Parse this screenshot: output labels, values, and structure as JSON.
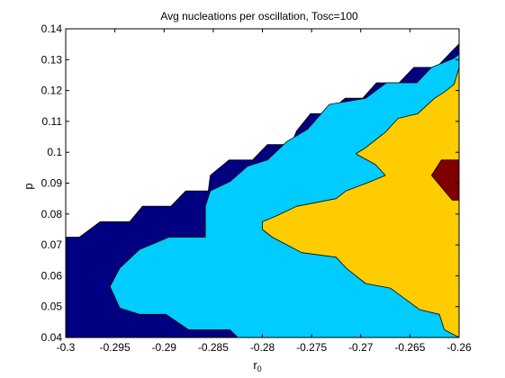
{
  "chart_data": {
    "type": "contourf",
    "title": "Avg nucleations per oscillation, Tosc=100",
    "xlabel": "r",
    "xlabel_subscript": "0",
    "ylabel": "p",
    "xlim": [
      -0.3,
      -0.26
    ],
    "ylim": [
      0.04,
      0.14
    ],
    "xticks": [
      -0.3,
      -0.295,
      -0.29,
      -0.285,
      -0.28,
      -0.275,
      -0.27,
      -0.265,
      -0.26
    ],
    "xtick_labels": [
      "-0.3",
      "-0.295",
      "-0.29",
      "-0.285",
      "-0.28",
      "-0.275",
      "-0.27",
      "-0.265",
      "-0.26"
    ],
    "yticks": [
      0.04,
      0.05,
      0.06,
      0.07,
      0.08,
      0.09,
      0.1,
      0.11,
      0.12,
      0.13,
      0.14
    ],
    "ytick_labels": [
      "0.04",
      "0.05",
      "0.06",
      "0.07",
      "0.08",
      "0.09",
      "0.1",
      "0.11",
      "0.12",
      "0.13",
      "0.14"
    ],
    "grid": false,
    "colors": {
      "background_region": "#ffffff",
      "level1": "#000080",
      "level2": "#00ccff",
      "level3": "#ffcc00",
      "level4": "#800000"
    },
    "regions": [
      {
        "level": "level1",
        "color": "#000080",
        "polygon": [
          [
            -0.3,
            0.04
          ],
          [
            -0.3,
            0.0725
          ],
          [
            -0.2986,
            0.0725
          ],
          [
            -0.2965,
            0.0775
          ],
          [
            -0.2935,
            0.0775
          ],
          [
            -0.2922,
            0.0825
          ],
          [
            -0.2893,
            0.0825
          ],
          [
            -0.2878,
            0.0875
          ],
          [
            -0.2855,
            0.0875
          ],
          [
            -0.2853,
            0.0925
          ],
          [
            -0.2834,
            0.0975
          ],
          [
            -0.281,
            0.0975
          ],
          [
            -0.2795,
            0.1025
          ],
          [
            -0.2771,
            0.1025
          ],
          [
            -0.2765,
            0.107
          ],
          [
            -0.2751,
            0.1125
          ],
          [
            -0.2734,
            0.1125
          ],
          [
            -0.2716,
            0.1175
          ],
          [
            -0.2698,
            0.1175
          ],
          [
            -0.2684,
            0.1225
          ],
          [
            -0.2661,
            0.1225
          ],
          [
            -0.2646,
            0.1275
          ],
          [
            -0.2623,
            0.1275
          ],
          [
            -0.2608,
            0.1325
          ],
          [
            -0.26,
            0.1351
          ],
          [
            -0.26,
            0.04
          ]
        ]
      },
      {
        "level": "level2",
        "color": "#00ccff",
        "polygon": [
          [
            -0.2945,
            0.0625
          ],
          [
            -0.2955,
            0.0565
          ],
          [
            -0.2945,
            0.0495
          ],
          [
            -0.2925,
            0.0475
          ],
          [
            -0.2898,
            0.0475
          ],
          [
            -0.2875,
            0.0425
          ],
          [
            -0.2833,
            0.0425
          ],
          [
            -0.2825,
            0.04
          ],
          [
            -0.26,
            0.04
          ],
          [
            -0.26,
            0.1318
          ],
          [
            -0.2605,
            0.1305
          ],
          [
            -0.2628,
            0.1275
          ],
          [
            -0.2643,
            0.1225
          ],
          [
            -0.2674,
            0.1225
          ],
          [
            -0.2695,
            0.1175
          ],
          [
            -0.2732,
            0.1155
          ],
          [
            -0.2754,
            0.1075
          ],
          [
            -0.2775,
            0.1035
          ],
          [
            -0.2795,
            0.0975
          ],
          [
            -0.2815,
            0.0955
          ],
          [
            -0.2833,
            0.0905
          ],
          [
            -0.2853,
            0.0875
          ],
          [
            -0.2858,
            0.0825
          ],
          [
            -0.2858,
            0.0725
          ],
          [
            -0.2895,
            0.0725
          ],
          [
            -0.2925,
            0.0685
          ],
          [
            -0.2945,
            0.0625
          ]
        ]
      },
      {
        "level": "level3",
        "color": "#ffcc00",
        "polygon": [
          [
            -0.28,
            0.075
          ],
          [
            -0.279,
            0.0725
          ],
          [
            -0.2775,
            0.07
          ],
          [
            -0.276,
            0.0675
          ],
          [
            -0.2725,
            0.066
          ],
          [
            -0.2715,
            0.0625
          ],
          [
            -0.2705,
            0.06
          ],
          [
            -0.2695,
            0.0575
          ],
          [
            -0.267,
            0.056
          ],
          [
            -0.2655,
            0.0525
          ],
          [
            -0.264,
            0.049
          ],
          [
            -0.262,
            0.0475
          ],
          [
            -0.2615,
            0.0425
          ],
          [
            -0.26,
            0.04
          ],
          [
            -0.26,
            0.1275
          ],
          [
            -0.2605,
            0.122
          ],
          [
            -0.2615,
            0.1195
          ],
          [
            -0.2625,
            0.1175
          ],
          [
            -0.2642,
            0.1125
          ],
          [
            -0.2662,
            0.111
          ],
          [
            -0.2675,
            0.1065
          ],
          [
            -0.2685,
            0.104
          ],
          [
            -0.2695,
            0.1015
          ],
          [
            -0.2705,
            0.0995
          ],
          [
            -0.2685,
            0.096
          ],
          [
            -0.2675,
            0.0925
          ],
          [
            -0.269,
            0.0905
          ],
          [
            -0.2715,
            0.0875
          ],
          [
            -0.2725,
            0.085
          ],
          [
            -0.2765,
            0.0825
          ],
          [
            -0.2785,
            0.0795
          ],
          [
            -0.28,
            0.0775
          ],
          [
            -0.28,
            0.075
          ]
        ]
      },
      {
        "level": "level4",
        "color": "#800000",
        "polygon": [
          [
            -0.2628,
            0.0925
          ],
          [
            -0.2618,
            0.0975
          ],
          [
            -0.26,
            0.0975
          ],
          [
            -0.26,
            0.0845
          ],
          [
            -0.2607,
            0.0845
          ],
          [
            -0.2628,
            0.0925
          ]
        ]
      }
    ]
  }
}
